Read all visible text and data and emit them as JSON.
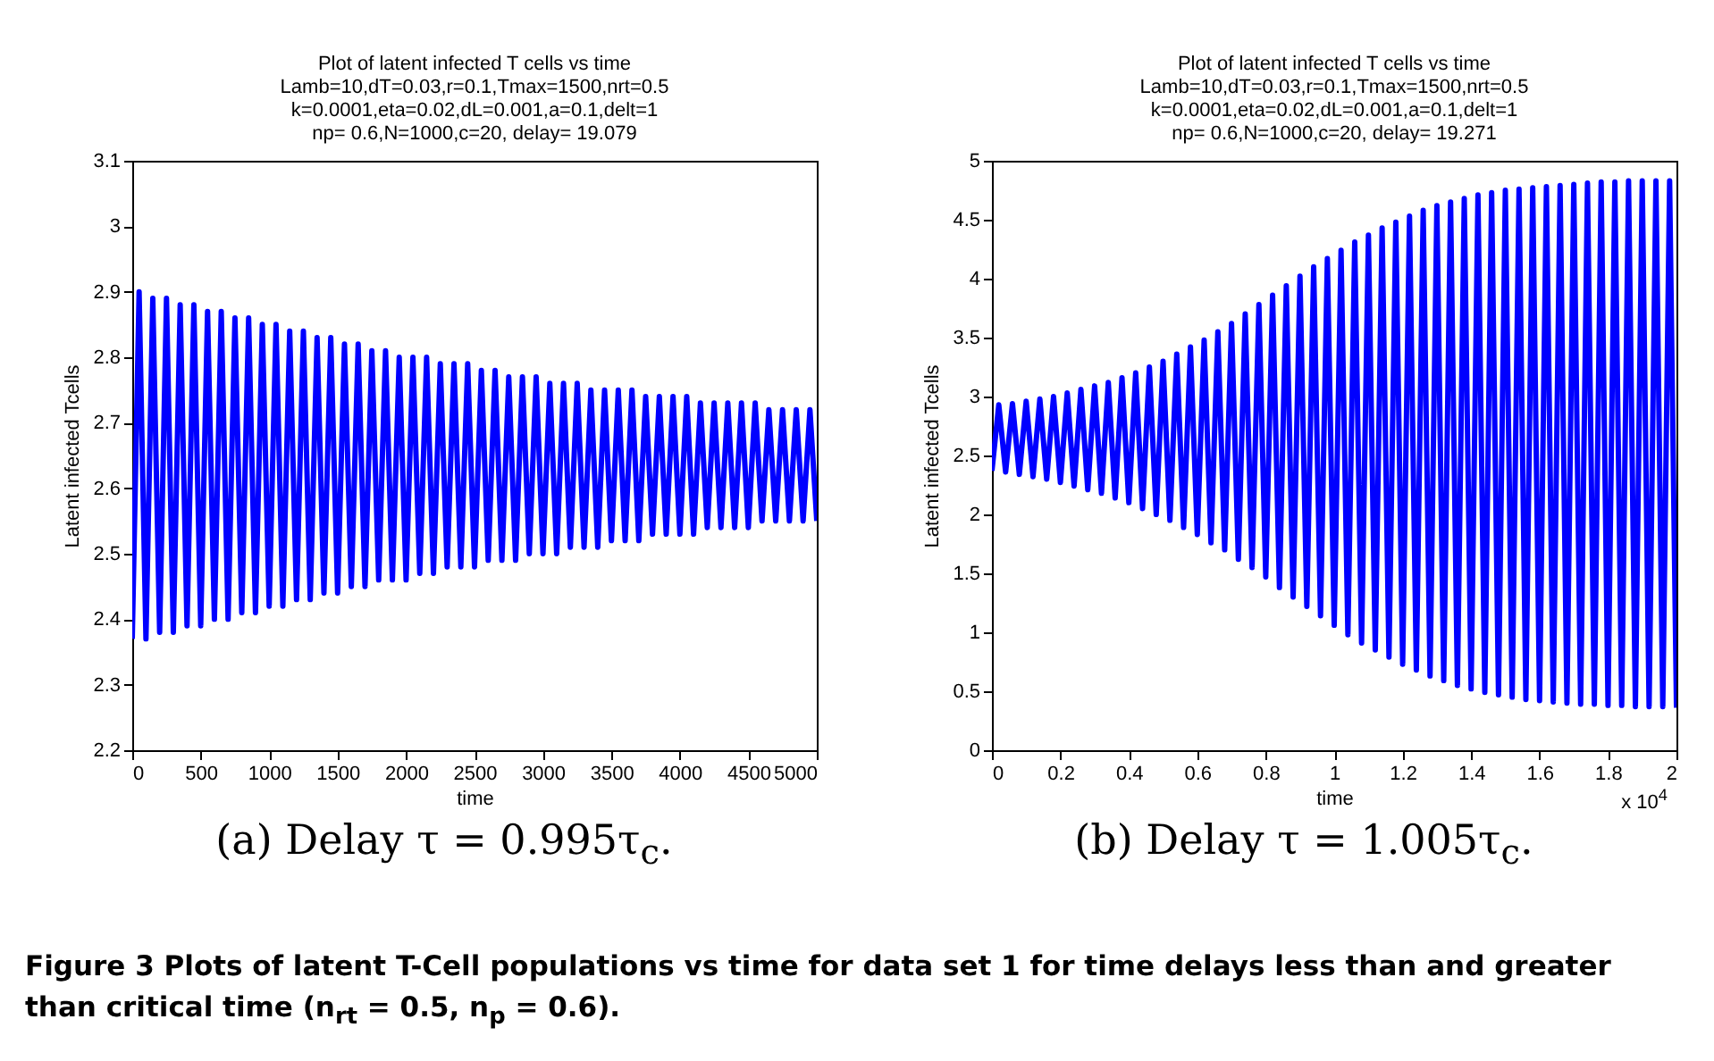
{
  "chart_data": [
    {
      "type": "line",
      "title": "Plot of latent infected T cells vs time",
      "subtitle": "Lamb=10,dT=0.03,r=0.1,Tmax=1500,nrt=0.5\nk=0.0001,eta=0.02,dL=0.001,a=0.1,delt=1\nnp= 0.6,N=1000,c=20, delay= 19.079",
      "xlabel": "time",
      "ylabel": "Latent infected Tcells",
      "xlim": [
        0,
        5000
      ],
      "xticks": [
        0,
        500,
        1000,
        1500,
        2000,
        2500,
        3000,
        3500,
        4000,
        4500,
        5000
      ],
      "ylim": [
        2.2,
        3.1
      ],
      "yticks": [
        2.2,
        2.3,
        2.4,
        2.5,
        2.6,
        2.7,
        2.8,
        2.9,
        3,
        3.1
      ],
      "x": [
        0,
        50,
        100,
        150,
        200,
        250,
        300,
        350,
        400,
        450,
        500,
        550,
        600,
        650,
        700,
        750,
        800,
        850,
        900,
        950,
        1000,
        1050,
        1100,
        1150,
        1200,
        1250,
        1300,
        1350,
        1400,
        1450,
        1500,
        1550,
        1600,
        1650,
        1700,
        1750,
        1800,
        1850,
        1900,
        1950,
        2000,
        2050,
        2100,
        2150,
        2200,
        2250,
        2300,
        2350,
        2400,
        2450,
        2500,
        2550,
        2600,
        2650,
        2700,
        2750,
        2800,
        2850,
        2900,
        2950,
        3000,
        3050,
        3100,
        3150,
        3200,
        3250,
        3300,
        3350,
        3400,
        3450,
        3500,
        3550,
        3600,
        3650,
        3700,
        3750,
        3800,
        3850,
        3900,
        3950,
        4000,
        4050,
        4100,
        4150,
        4200,
        4250,
        4300,
        4350,
        4400,
        4450,
        4500,
        4550,
        4600,
        4650,
        4700,
        4750,
        4800,
        4850,
        4900,
        4950,
        5000
      ],
      "series": [
        {
          "color": "#0000ff",
          "values": [
            2.37,
            2.9,
            2.37,
            2.89,
            2.38,
            2.89,
            2.38,
            2.88,
            2.39,
            2.88,
            2.39,
            2.87,
            2.4,
            2.87,
            2.4,
            2.86,
            2.41,
            2.86,
            2.41,
            2.85,
            2.42,
            2.85,
            2.42,
            2.84,
            2.43,
            2.84,
            2.43,
            2.83,
            2.44,
            2.83,
            2.44,
            2.82,
            2.45,
            2.82,
            2.45,
            2.81,
            2.46,
            2.81,
            2.46,
            2.8,
            2.46,
            2.8,
            2.47,
            2.8,
            2.47,
            2.79,
            2.48,
            2.79,
            2.48,
            2.79,
            2.48,
            2.78,
            2.49,
            2.78,
            2.49,
            2.77,
            2.49,
            2.77,
            2.5,
            2.77,
            2.5,
            2.76,
            2.5,
            2.76,
            2.51,
            2.76,
            2.51,
            2.75,
            2.51,
            2.75,
            2.52,
            2.75,
            2.52,
            2.75,
            2.52,
            2.74,
            2.53,
            2.74,
            2.53,
            2.74,
            2.53,
            2.74,
            2.53,
            2.73,
            2.54,
            2.73,
            2.54,
            2.73,
            2.54,
            2.73,
            2.54,
            2.73,
            2.55,
            2.72,
            2.55,
            2.72,
            2.55,
            2.72,
            2.55,
            2.72,
            2.55
          ]
        }
      ],
      "line_style": "solid",
      "annotations": [
        "(a) Delay τ = 0.995τ$_{c}$.",
        "Figure 3  Plots of latent T-Cell populations vs time for data set 1 for time delays less than and greater than critical time (n$_{rt}$ = 0.5, n$_{p}$ = 0.6)."
      ]
    },
    {
      "type": "line",
      "title": "Plot of latent infected T cells vs time",
      "subtitle": "Lamb=10,dT=0.03,r=0.1,Tmax=1500,nrt=0.5\nk=0.0001,eta=0.02,dL=0.001,a=0.1,delt=1\nnp= 0.6,N=1000,c=20, delay= 19.271",
      "xlabel": "time",
      "ylabel": "Latent infected Tcells",
      "xlim": [
        0,
        2
      ],
      "xticks": [
        0,
        0.2,
        0.4,
        0.6,
        0.8,
        1,
        1.2,
        1.4,
        1.6,
        1.8,
        2
      ],
      "ylim": [
        0,
        5
      ],
      "yticks": [
        0,
        0.5,
        1,
        1.5,
        2,
        2.5,
        3,
        3.5,
        4,
        4.5,
        5
      ],
      "x": [
        0,
        0.02,
        0.04,
        0.06,
        0.08,
        0.1,
        0.12,
        0.14,
        0.16,
        0.18,
        0.2,
        0.22,
        0.24,
        0.26,
        0.28,
        0.3,
        0.32,
        0.34,
        0.36,
        0.38,
        0.4,
        0.42,
        0.44,
        0.46,
        0.48,
        0.5,
        0.52,
        0.54,
        0.56,
        0.58,
        0.6,
        0.62,
        0.64,
        0.66,
        0.68,
        0.7,
        0.72,
        0.74,
        0.76,
        0.78,
        0.8,
        0.82,
        0.84,
        0.86,
        0.88,
        0.9,
        0.92,
        0.94,
        0.96,
        0.98,
        1,
        1.02,
        1.04,
        1.06,
        1.08,
        1.1,
        1.12,
        1.14,
        1.16,
        1.18,
        1.2,
        1.22,
        1.24,
        1.26,
        1.28,
        1.3,
        1.32,
        1.34,
        1.36,
        1.38,
        1.4,
        1.42,
        1.44,
        1.46,
        1.48,
        1.5,
        1.52,
        1.54,
        1.56,
        1.58,
        1.6,
        1.62,
        1.64,
        1.66,
        1.68,
        1.7,
        1.72,
        1.74,
        1.76,
        1.78,
        1.8,
        1.82,
        1.84,
        1.86,
        1.88,
        1.9,
        1.92,
        1.94,
        1.96,
        1.98,
        2
      ],
      "series": [
        {
          "color": "#0000ff",
          "values": [
            2.37,
            2.93,
            2.36,
            2.94,
            2.34,
            2.96,
            2.32,
            2.98,
            2.3,
            3.0,
            2.27,
            3.03,
            2.24,
            3.06,
            2.21,
            3.09,
            2.18,
            3.12,
            2.14,
            3.16,
            2.1,
            3.2,
            2.05,
            3.25,
            2.0,
            3.3,
            1.95,
            3.36,
            1.89,
            3.42,
            1.83,
            3.48,
            1.76,
            3.55,
            1.7,
            3.62,
            1.62,
            3.7,
            1.55,
            3.78,
            1.47,
            3.86,
            1.38,
            3.94,
            1.3,
            4.02,
            1.22,
            4.1,
            1.14,
            4.17,
            1.06,
            4.24,
            0.98,
            4.31,
            0.91,
            4.37,
            0.85,
            4.43,
            0.79,
            4.48,
            0.73,
            4.53,
            0.68,
            4.58,
            0.63,
            4.62,
            0.59,
            4.65,
            0.55,
            4.68,
            0.52,
            4.71,
            0.49,
            4.73,
            0.47,
            4.75,
            0.45,
            4.76,
            0.43,
            4.77,
            0.42,
            4.78,
            0.41,
            4.79,
            0.4,
            4.8,
            0.39,
            4.81,
            0.39,
            4.82,
            0.38,
            4.82,
            0.38,
            4.83,
            0.37,
            4.83,
            0.37,
            4.83,
            0.37,
            4.83,
            0.36
          ]
        }
      ],
      "line_style": "solid",
      "annotations": [
        "x 10$^{4}$",
        "(b) Delay τ = 1.005τ$_{c}$."
      ]
    }
  ]
}
